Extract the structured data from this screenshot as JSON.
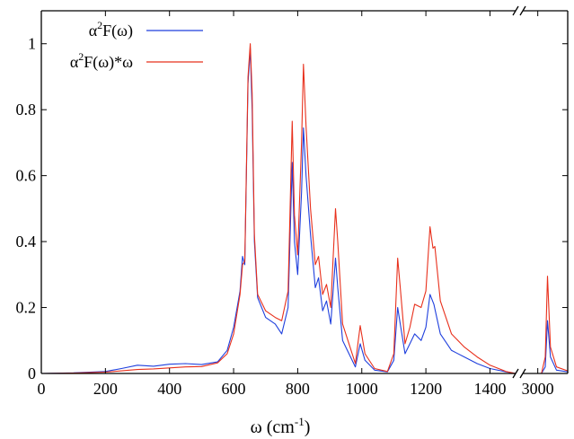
{
  "chart_data": {
    "type": "line",
    "title": "",
    "xlabel": {
      "main": "ω (cm",
      "sup": "-1",
      "end": ")"
    },
    "ylabel": "",
    "ylim": [
      0,
      1.1
    ],
    "yticks": [
      "0",
      "0.2",
      "0.4",
      "0.6",
      "0.8",
      "1"
    ],
    "x_segments": [
      {
        "range": [
          0,
          1480
        ],
        "ticks": [
          0,
          200,
          400,
          600,
          800,
          1000,
          1200,
          1400
        ]
      },
      {
        "range": [
          2980,
          3040
        ],
        "ticks": [
          3000
        ]
      }
    ],
    "grid": false,
    "legend_position": "top-left",
    "series": [
      {
        "name": {
          "base": "α",
          "sup": "2",
          "rest": "F(ω)"
        },
        "color": "#1f3fdd",
        "points": [
          [
            0,
            0
          ],
          [
            100,
            0.002
          ],
          [
            200,
            0.006
          ],
          [
            250,
            0.015
          ],
          [
            300,
            0.025
          ],
          [
            350,
            0.022
          ],
          [
            400,
            0.028
          ],
          [
            450,
            0.03
          ],
          [
            500,
            0.027
          ],
          [
            550,
            0.035
          ],
          [
            580,
            0.07
          ],
          [
            600,
            0.14
          ],
          [
            620,
            0.25
          ],
          [
            628,
            0.355
          ],
          [
            635,
            0.33
          ],
          [
            645,
            0.88
          ],
          [
            652,
            0.985
          ],
          [
            658,
            0.8
          ],
          [
            665,
            0.4
          ],
          [
            675,
            0.23
          ],
          [
            700,
            0.17
          ],
          [
            730,
            0.15
          ],
          [
            750,
            0.12
          ],
          [
            770,
            0.2
          ],
          [
            783,
            0.64
          ],
          [
            790,
            0.4
          ],
          [
            800,
            0.3
          ],
          [
            812,
            0.55
          ],
          [
            818,
            0.745
          ],
          [
            826,
            0.6
          ],
          [
            840,
            0.42
          ],
          [
            855,
            0.26
          ],
          [
            865,
            0.29
          ],
          [
            878,
            0.19
          ],
          [
            890,
            0.22
          ],
          [
            903,
            0.15
          ],
          [
            918,
            0.35
          ],
          [
            925,
            0.26
          ],
          [
            940,
            0.1
          ],
          [
            960,
            0.06
          ],
          [
            980,
            0.02
          ],
          [
            995,
            0.09
          ],
          [
            1010,
            0.04
          ],
          [
            1040,
            0.01
          ],
          [
            1080,
            0.005
          ],
          [
            1100,
            0.04
          ],
          [
            1112,
            0.2
          ],
          [
            1120,
            0.15
          ],
          [
            1135,
            0.06
          ],
          [
            1150,
            0.09
          ],
          [
            1165,
            0.12
          ],
          [
            1185,
            0.1
          ],
          [
            1200,
            0.14
          ],
          [
            1213,
            0.24
          ],
          [
            1225,
            0.21
          ],
          [
            1245,
            0.12
          ],
          [
            1280,
            0.07
          ],
          [
            1320,
            0.05
          ],
          [
            1360,
            0.03
          ],
          [
            1400,
            0.015
          ],
          [
            1450,
            0.005
          ],
          [
            1480,
            0
          ],
          [
            2980,
            0
          ],
          [
            3005,
            0
          ],
          [
            3010,
            0.02
          ],
          [
            3013,
            0.16
          ],
          [
            3017,
            0.05
          ],
          [
            3025,
            0.01
          ],
          [
            3040,
            0.005
          ]
        ]
      },
      {
        "name": {
          "base": "α",
          "sup": "2",
          "rest": "F(ω)*ω"
        },
        "color": "#e8301c",
        "points": [
          [
            0,
            0
          ],
          [
            100,
            0.001
          ],
          [
            200,
            0.004
          ],
          [
            250,
            0.008
          ],
          [
            300,
            0.012
          ],
          [
            350,
            0.014
          ],
          [
            400,
            0.017
          ],
          [
            450,
            0.02
          ],
          [
            500,
            0.021
          ],
          [
            550,
            0.032
          ],
          [
            580,
            0.06
          ],
          [
            600,
            0.12
          ],
          [
            620,
            0.24
          ],
          [
            628,
            0.33
          ],
          [
            635,
            0.34
          ],
          [
            645,
            0.9
          ],
          [
            652,
            1.0
          ],
          [
            658,
            0.85
          ],
          [
            665,
            0.42
          ],
          [
            675,
            0.24
          ],
          [
            700,
            0.19
          ],
          [
            730,
            0.17
          ],
          [
            750,
            0.16
          ],
          [
            770,
            0.25
          ],
          [
            783,
            0.765
          ],
          [
            790,
            0.48
          ],
          [
            800,
            0.36
          ],
          [
            812,
            0.7
          ],
          [
            818,
            0.938
          ],
          [
            826,
            0.75
          ],
          [
            840,
            0.5
          ],
          [
            855,
            0.33
          ],
          [
            865,
            0.355
          ],
          [
            878,
            0.24
          ],
          [
            890,
            0.27
          ],
          [
            903,
            0.2
          ],
          [
            918,
            0.5
          ],
          [
            925,
            0.4
          ],
          [
            940,
            0.15
          ],
          [
            960,
            0.09
          ],
          [
            980,
            0.03
          ],
          [
            995,
            0.145
          ],
          [
            1010,
            0.06
          ],
          [
            1040,
            0.015
          ],
          [
            1080,
            0.006
          ],
          [
            1100,
            0.06
          ],
          [
            1112,
            0.35
          ],
          [
            1120,
            0.26
          ],
          [
            1135,
            0.09
          ],
          [
            1150,
            0.14
          ],
          [
            1165,
            0.21
          ],
          [
            1185,
            0.2
          ],
          [
            1200,
            0.25
          ],
          [
            1213,
            0.445
          ],
          [
            1222,
            0.38
          ],
          [
            1228,
            0.385
          ],
          [
            1245,
            0.22
          ],
          [
            1280,
            0.12
          ],
          [
            1320,
            0.08
          ],
          [
            1360,
            0.05
          ],
          [
            1400,
            0.025
          ],
          [
            1450,
            0.006
          ],
          [
            1480,
            0
          ],
          [
            2980,
            0
          ],
          [
            3005,
            0
          ],
          [
            3010,
            0.05
          ],
          [
            3013,
            0.295
          ],
          [
            3017,
            0.08
          ],
          [
            3025,
            0.02
          ],
          [
            3040,
            0.008
          ]
        ]
      }
    ]
  }
}
